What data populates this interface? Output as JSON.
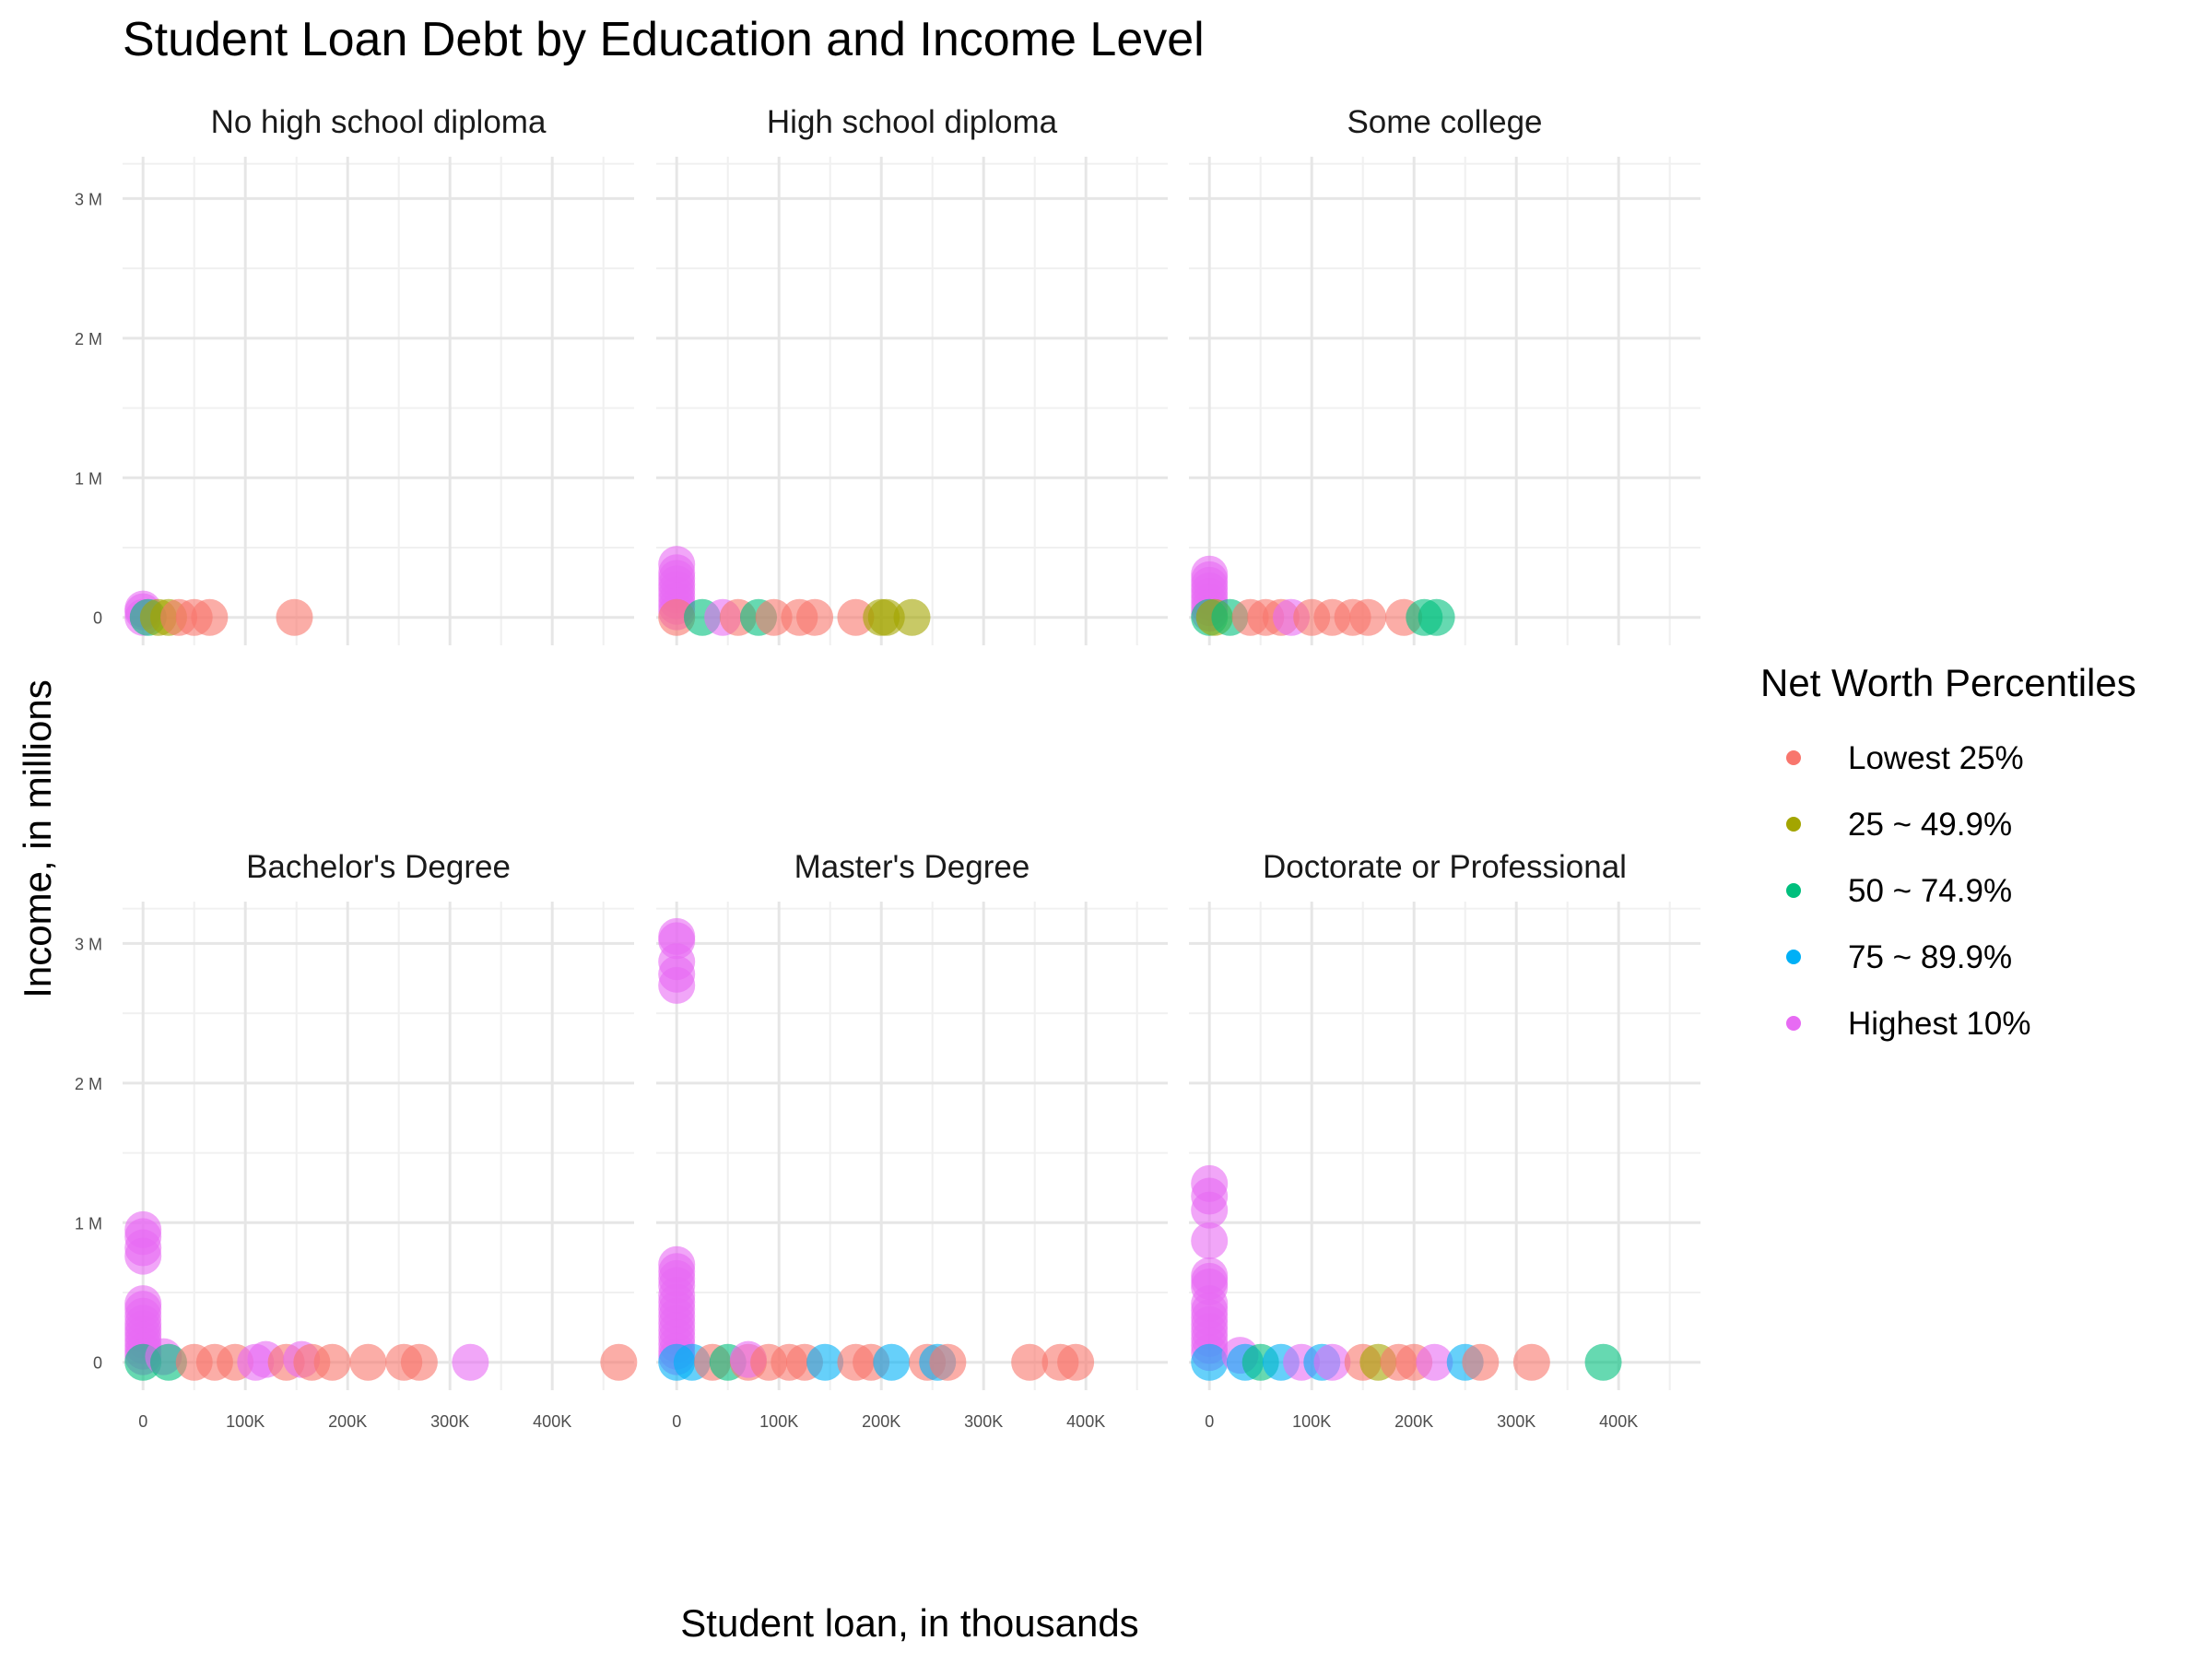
{
  "chart_data": {
    "type": "scatter",
    "title": "Student Loan Debt by Education and Income Level",
    "xlabel": "Student loan, in thousands",
    "ylabel": "Income, in millions",
    "xlim": [
      -20000,
      480000
    ],
    "ylim": [
      -200000,
      3300000
    ],
    "x_ticks": [
      {
        "value": 0,
        "label": "0"
      },
      {
        "value": 100000,
        "label": "100K"
      },
      {
        "value": 200000,
        "label": "200K"
      },
      {
        "value": 300000,
        "label": "300K"
      },
      {
        "value": 400000,
        "label": "400K"
      }
    ],
    "y_ticks": [
      {
        "value": 0,
        "label": "0"
      },
      {
        "value": 1000000,
        "label": "1 M"
      },
      {
        "value": 2000000,
        "label": "2 M"
      },
      {
        "value": 3000000,
        "label": "3 M"
      }
    ],
    "grid": true,
    "legend": {
      "title": "Net Worth Percentiles",
      "position": "right",
      "entries": [
        {
          "label": "Lowest 25%",
          "color": "#F8766D"
        },
        {
          "label": "25 ~ 49.9%",
          "color": "#A3A500"
        },
        {
          "label": "50 ~ 74.9%",
          "color": "#00BF7D"
        },
        {
          "label": "75 ~ 89.9%",
          "color": "#00B0F6"
        },
        {
          "label": "Highest 10%",
          "color": "#E76BF3"
        }
      ]
    },
    "panels": [
      {
        "title": "No high school diploma",
        "points": [
          {
            "x": 0,
            "y": 0,
            "g": 4
          },
          {
            "x": 0,
            "y": 40000,
            "g": 4
          },
          {
            "x": 0,
            "y": 60000,
            "g": 4
          },
          {
            "x": 5000,
            "y": 0,
            "g": 2
          },
          {
            "x": 15000,
            "y": 0,
            "g": 1
          },
          {
            "x": 25000,
            "y": 0,
            "g": 1
          },
          {
            "x": 35000,
            "y": 0,
            "g": 0
          },
          {
            "x": 50000,
            "y": 0,
            "g": 0
          },
          {
            "x": 65000,
            "y": 0,
            "g": 0
          },
          {
            "x": 148000,
            "y": 0,
            "g": 0
          }
        ]
      },
      {
        "title": "High school diploma",
        "points": [
          {
            "x": 0,
            "y": 380000,
            "g": 4
          },
          {
            "x": 0,
            "y": 320000,
            "g": 4
          },
          {
            "x": 0,
            "y": 280000,
            "g": 4
          },
          {
            "x": 0,
            "y": 240000,
            "g": 4
          },
          {
            "x": 0,
            "y": 200000,
            "g": 4
          },
          {
            "x": 0,
            "y": 160000,
            "g": 4
          },
          {
            "x": 0,
            "y": 120000,
            "g": 4
          },
          {
            "x": 0,
            "y": 80000,
            "g": 4
          },
          {
            "x": 0,
            "y": 40000,
            "g": 4
          },
          {
            "x": 0,
            "y": 0,
            "g": 0
          },
          {
            "x": 25000,
            "y": 0,
            "g": 2
          },
          {
            "x": 45000,
            "y": 0,
            "g": 4
          },
          {
            "x": 60000,
            "y": 0,
            "g": 0
          },
          {
            "x": 80000,
            "y": 0,
            "g": 2
          },
          {
            "x": 95000,
            "y": 0,
            "g": 0
          },
          {
            "x": 120000,
            "y": 0,
            "g": 0
          },
          {
            "x": 135000,
            "y": 0,
            "g": 0
          },
          {
            "x": 175000,
            "y": 0,
            "g": 0
          },
          {
            "x": 200000,
            "y": 0,
            "g": 1
          },
          {
            "x": 205000,
            "y": 0,
            "g": 1
          },
          {
            "x": 230000,
            "y": 0,
            "g": 1
          }
        ]
      },
      {
        "title": "Some college",
        "points": [
          {
            "x": 0,
            "y": 310000,
            "g": 4
          },
          {
            "x": 0,
            "y": 270000,
            "g": 4
          },
          {
            "x": 0,
            "y": 230000,
            "g": 4
          },
          {
            "x": 0,
            "y": 190000,
            "g": 4
          },
          {
            "x": 0,
            "y": 150000,
            "g": 4
          },
          {
            "x": 0,
            "y": 110000,
            "g": 4
          },
          {
            "x": 0,
            "y": 70000,
            "g": 4
          },
          {
            "x": 0,
            "y": 30000,
            "g": 4
          },
          {
            "x": 0,
            "y": 0,
            "g": 2
          },
          {
            "x": 5000,
            "y": 0,
            "g": 1
          },
          {
            "x": 20000,
            "y": 0,
            "g": 2
          },
          {
            "x": 40000,
            "y": 0,
            "g": 0
          },
          {
            "x": 55000,
            "y": 0,
            "g": 0
          },
          {
            "x": 70000,
            "y": 0,
            "g": 0
          },
          {
            "x": 80000,
            "y": 0,
            "g": 4
          },
          {
            "x": 100000,
            "y": 0,
            "g": 0
          },
          {
            "x": 120000,
            "y": 0,
            "g": 0
          },
          {
            "x": 140000,
            "y": 0,
            "g": 0
          },
          {
            "x": 155000,
            "y": 0,
            "g": 0
          },
          {
            "x": 190000,
            "y": 0,
            "g": 0
          },
          {
            "x": 210000,
            "y": 0,
            "g": 2
          },
          {
            "x": 222000,
            "y": 0,
            "g": 2
          }
        ]
      },
      {
        "title": "Bachelor's Degree",
        "points": [
          {
            "x": 0,
            "y": 950000,
            "g": 4
          },
          {
            "x": 0,
            "y": 900000,
            "g": 4
          },
          {
            "x": 0,
            "y": 820000,
            "g": 4
          },
          {
            "x": 0,
            "y": 760000,
            "g": 4
          },
          {
            "x": 0,
            "y": 420000,
            "g": 4
          },
          {
            "x": 0,
            "y": 380000,
            "g": 4
          },
          {
            "x": 0,
            "y": 330000,
            "g": 4
          },
          {
            "x": 0,
            "y": 280000,
            "g": 4
          },
          {
            "x": 0,
            "y": 240000,
            "g": 4
          },
          {
            "x": 0,
            "y": 200000,
            "g": 4
          },
          {
            "x": 0,
            "y": 160000,
            "g": 4
          },
          {
            "x": 0,
            "y": 120000,
            "g": 4
          },
          {
            "x": 0,
            "y": 80000,
            "g": 4
          },
          {
            "x": 0,
            "y": 40000,
            "g": 4
          },
          {
            "x": 0,
            "y": 0,
            "g": 2
          },
          {
            "x": 20000,
            "y": 40000,
            "g": 4
          },
          {
            "x": 25000,
            "y": 0,
            "g": 2
          },
          {
            "x": 50000,
            "y": 0,
            "g": 0
          },
          {
            "x": 70000,
            "y": 0,
            "g": 0
          },
          {
            "x": 90000,
            "y": 0,
            "g": 0
          },
          {
            "x": 110000,
            "y": 0,
            "g": 4
          },
          {
            "x": 120000,
            "y": 20000,
            "g": 4
          },
          {
            "x": 140000,
            "y": 0,
            "g": 0
          },
          {
            "x": 155000,
            "y": 20000,
            "g": 4
          },
          {
            "x": 165000,
            "y": 0,
            "g": 0
          },
          {
            "x": 185000,
            "y": 0,
            "g": 0
          },
          {
            "x": 220000,
            "y": 0,
            "g": 0
          },
          {
            "x": 255000,
            "y": 0,
            "g": 0
          },
          {
            "x": 270000,
            "y": 0,
            "g": 0
          },
          {
            "x": 320000,
            "y": 0,
            "g": 4
          },
          {
            "x": 465000,
            "y": 0,
            "g": 0
          }
        ]
      },
      {
        "title": "Master's Degree",
        "points": [
          {
            "x": 0,
            "y": 3050000,
            "g": 4
          },
          {
            "x": 0,
            "y": 3020000,
            "g": 4
          },
          {
            "x": 0,
            "y": 2870000,
            "g": 4
          },
          {
            "x": 0,
            "y": 2780000,
            "g": 4
          },
          {
            "x": 0,
            "y": 2700000,
            "g": 4
          },
          {
            "x": 0,
            "y": 700000,
            "g": 4
          },
          {
            "x": 0,
            "y": 650000,
            "g": 4
          },
          {
            "x": 0,
            "y": 600000,
            "g": 4
          },
          {
            "x": 0,
            "y": 550000,
            "g": 4
          },
          {
            "x": 0,
            "y": 480000,
            "g": 4
          },
          {
            "x": 0,
            "y": 430000,
            "g": 4
          },
          {
            "x": 0,
            "y": 380000,
            "g": 4
          },
          {
            "x": 0,
            "y": 330000,
            "g": 4
          },
          {
            "x": 0,
            "y": 280000,
            "g": 4
          },
          {
            "x": 0,
            "y": 230000,
            "g": 4
          },
          {
            "x": 0,
            "y": 180000,
            "g": 4
          },
          {
            "x": 0,
            "y": 130000,
            "g": 4
          },
          {
            "x": 0,
            "y": 80000,
            "g": 4
          },
          {
            "x": 0,
            "y": 40000,
            "g": 4
          },
          {
            "x": 0,
            "y": 0,
            "g": 3
          },
          {
            "x": 15000,
            "y": 0,
            "g": 3
          },
          {
            "x": 35000,
            "y": 0,
            "g": 0
          },
          {
            "x": 50000,
            "y": 0,
            "g": 2
          },
          {
            "x": 70000,
            "y": 0,
            "g": 0
          },
          {
            "x": 70000,
            "y": 20000,
            "g": 4
          },
          {
            "x": 90000,
            "y": 0,
            "g": 0
          },
          {
            "x": 110000,
            "y": 0,
            "g": 0
          },
          {
            "x": 125000,
            "y": 0,
            "g": 0
          },
          {
            "x": 145000,
            "y": 0,
            "g": 3
          },
          {
            "x": 175000,
            "y": 0,
            "g": 0
          },
          {
            "x": 190000,
            "y": 0,
            "g": 0
          },
          {
            "x": 210000,
            "y": 0,
            "g": 3
          },
          {
            "x": 245000,
            "y": 0,
            "g": 0
          },
          {
            "x": 255000,
            "y": 0,
            "g": 3
          },
          {
            "x": 265000,
            "y": 0,
            "g": 0
          },
          {
            "x": 345000,
            "y": 0,
            "g": 0
          },
          {
            "x": 375000,
            "y": 0,
            "g": 0
          },
          {
            "x": 390000,
            "y": 0,
            "g": 0
          }
        ]
      },
      {
        "title": "Doctorate or Professional",
        "points": [
          {
            "x": 0,
            "y": 1280000,
            "g": 4
          },
          {
            "x": 0,
            "y": 1190000,
            "g": 4
          },
          {
            "x": 0,
            "y": 1090000,
            "g": 4
          },
          {
            "x": 0,
            "y": 870000,
            "g": 4
          },
          {
            "x": 0,
            "y": 620000,
            "g": 4
          },
          {
            "x": 0,
            "y": 580000,
            "g": 4
          },
          {
            "x": 0,
            "y": 540000,
            "g": 4
          },
          {
            "x": 0,
            "y": 420000,
            "g": 4
          },
          {
            "x": 0,
            "y": 370000,
            "g": 4
          },
          {
            "x": 0,
            "y": 320000,
            "g": 4
          },
          {
            "x": 0,
            "y": 270000,
            "g": 4
          },
          {
            "x": 0,
            "y": 220000,
            "g": 4
          },
          {
            "x": 0,
            "y": 170000,
            "g": 4
          },
          {
            "x": 0,
            "y": 120000,
            "g": 4
          },
          {
            "x": 0,
            "y": 70000,
            "g": 4
          },
          {
            "x": 0,
            "y": 0,
            "g": 3
          },
          {
            "x": 30000,
            "y": 50000,
            "g": 4
          },
          {
            "x": 35000,
            "y": 0,
            "g": 3
          },
          {
            "x": 50000,
            "y": 0,
            "g": 2
          },
          {
            "x": 70000,
            "y": 0,
            "g": 3
          },
          {
            "x": 90000,
            "y": 0,
            "g": 4
          },
          {
            "x": 110000,
            "y": 0,
            "g": 3
          },
          {
            "x": 120000,
            "y": 0,
            "g": 4
          },
          {
            "x": 150000,
            "y": 0,
            "g": 0
          },
          {
            "x": 165000,
            "y": 0,
            "g": 1
          },
          {
            "x": 185000,
            "y": 0,
            "g": 0
          },
          {
            "x": 200000,
            "y": 0,
            "g": 0
          },
          {
            "x": 220000,
            "y": 0,
            "g": 4
          },
          {
            "x": 250000,
            "y": 0,
            "g": 3
          },
          {
            "x": 265000,
            "y": 0,
            "g": 0
          },
          {
            "x": 315000,
            "y": 0,
            "g": 0
          },
          {
            "x": 385000,
            "y": 0,
            "g": 2
          }
        ]
      }
    ]
  }
}
